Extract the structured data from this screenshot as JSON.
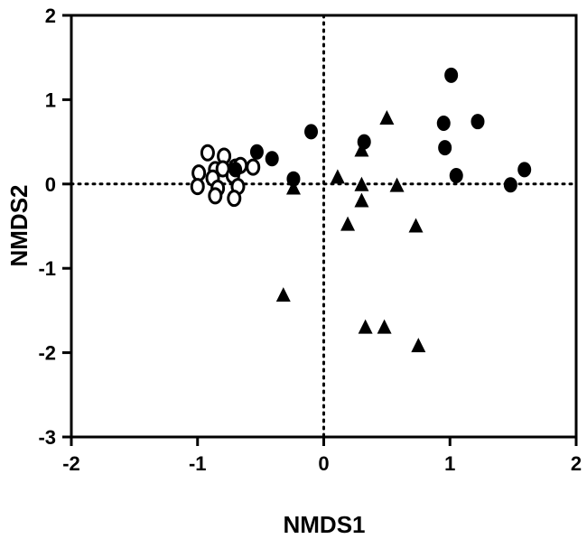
{
  "chart_data": {
    "type": "scatter",
    "xlabel": "NMDS1",
    "ylabel": "NMDS2",
    "xlim": [
      -2,
      2
    ],
    "ylim": [
      -3,
      2
    ],
    "x_ticks": [
      -2,
      -1,
      0,
      1,
      2
    ],
    "y_ticks": [
      2,
      1,
      0,
      -1,
      -2,
      -3
    ],
    "x_tick_labels": [
      "-2",
      "-1",
      "0",
      "1",
      "2"
    ],
    "y_tick_labels": [
      "2",
      "1",
      "0",
      "-1",
      "-2",
      "-3"
    ],
    "reference_lines": {
      "x": 0,
      "y": 0,
      "style": "dotted"
    },
    "grid": false,
    "series": [
      {
        "marker": "open-circle",
        "points": [
          [
            -0.92,
            0.37
          ],
          [
            -0.79,
            0.33
          ],
          [
            -0.99,
            0.13
          ],
          [
            -0.86,
            0.17
          ],
          [
            -0.8,
            0.18
          ],
          [
            -0.7,
            0.2
          ],
          [
            -0.66,
            0.22
          ],
          [
            -0.56,
            0.2
          ],
          [
            -0.72,
            0.1
          ],
          [
            -0.88,
            0.07
          ],
          [
            -1.0,
            -0.03
          ],
          [
            -0.84,
            -0.05
          ],
          [
            -0.68,
            -0.03
          ],
          [
            -0.86,
            -0.14
          ],
          [
            -0.71,
            -0.17
          ]
        ]
      },
      {
        "marker": "filled-circle",
        "points": [
          [
            1.01,
            1.29
          ],
          [
            0.95,
            0.72
          ],
          [
            1.22,
            0.74
          ],
          [
            0.32,
            0.5
          ],
          [
            0.96,
            0.43
          ],
          [
            -0.1,
            0.62
          ],
          [
            -0.53,
            0.38
          ],
          [
            -0.41,
            0.3
          ],
          [
            -0.7,
            0.17
          ],
          [
            -0.24,
            0.06
          ],
          [
            1.05,
            0.1
          ],
          [
            1.59,
            0.17
          ],
          [
            1.48,
            -0.01
          ]
        ]
      },
      {
        "marker": "filled-triangle",
        "points": [
          [
            0.5,
            0.78
          ],
          [
            0.3,
            0.4
          ],
          [
            0.11,
            0.08
          ],
          [
            -0.24,
            -0.05
          ],
          [
            0.3,
            -0.01
          ],
          [
            0.58,
            -0.02
          ],
          [
            0.3,
            -0.2
          ],
          [
            0.19,
            -0.48
          ],
          [
            0.73,
            -0.5
          ],
          [
            -0.32,
            -1.32
          ],
          [
            0.33,
            -1.7
          ],
          [
            0.48,
            -1.7
          ],
          [
            0.75,
            -1.92
          ]
        ]
      }
    ]
  }
}
